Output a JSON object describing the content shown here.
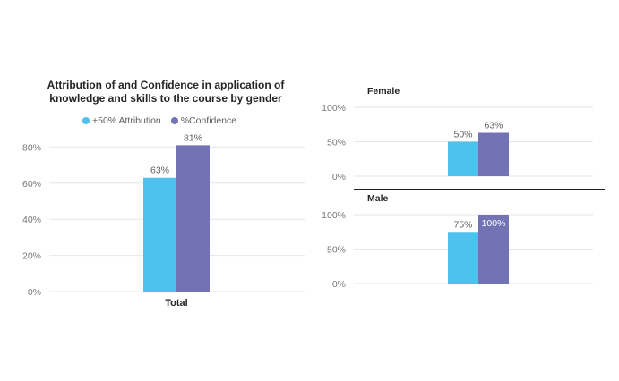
{
  "colors": {
    "attribution": "#4FC1EE",
    "confidence": "#7372B5",
    "grid": "#e6e6e6",
    "tick_text": "#777777"
  },
  "chart_data": [
    {
      "type": "bar",
      "title": "Attribution of and Confidence in application of knowledge and skills to the course by gender",
      "categories": [
        "Total"
      ],
      "series": [
        {
          "name": "+50% Attribution",
          "values": [
            63
          ]
        },
        {
          "name": "%Confidence",
          "values": [
            81
          ]
        }
      ],
      "data_labels": [
        [
          "63%"
        ],
        [
          "81%"
        ]
      ],
      "y_ticks": [
        "0%",
        "20%",
        "40%",
        "60%",
        "80%"
      ],
      "ylim": [
        0,
        85
      ],
      "grid": true,
      "legend": "top"
    },
    {
      "type": "bar",
      "title": "Female",
      "categories": [
        ""
      ],
      "series": [
        {
          "name": "+50% Attribution",
          "values": [
            50
          ]
        },
        {
          "name": "%Confidence",
          "values": [
            63
          ]
        }
      ],
      "data_labels": [
        [
          "50%"
        ],
        [
          "63%"
        ]
      ],
      "y_ticks": [
        "0%",
        "50%",
        "100%"
      ],
      "ylim": [
        0,
        100
      ],
      "grid": true
    },
    {
      "type": "bar",
      "title": "Male",
      "categories": [
        ""
      ],
      "series": [
        {
          "name": "+50% Attribution",
          "values": [
            75
          ]
        },
        {
          "name": "%Confidence",
          "values": [
            100
          ]
        }
      ],
      "data_labels": [
        [
          "75%"
        ],
        [
          "100%"
        ]
      ],
      "y_ticks": [
        "0%",
        "50%",
        "100%"
      ],
      "ylim": [
        0,
        100
      ],
      "grid": true
    }
  ]
}
